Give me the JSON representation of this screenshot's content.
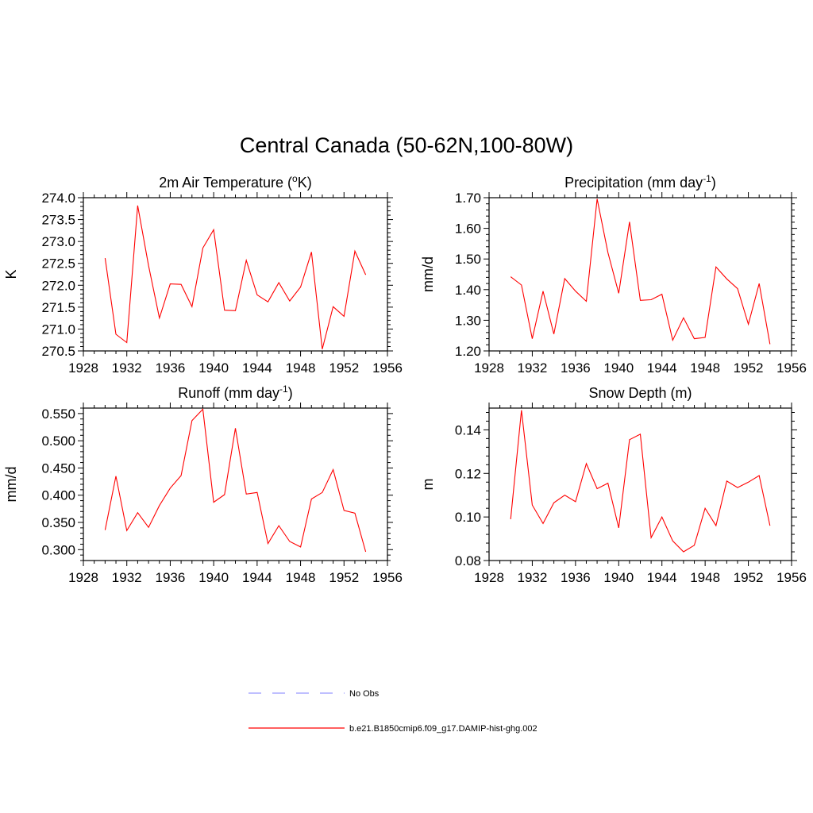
{
  "title": "Central Canada (50-62N,100-80W)",
  "legend": {
    "items": [
      {
        "label": "No Obs",
        "color": "#9999ff",
        "dash": true
      },
      {
        "label": "b.e21.B1850cmip6.f09_g17.DAMIP-hist-ghg.002",
        "color": "#ff0000",
        "dash": false
      }
    ]
  },
  "chart_data": [
    {
      "type": "line",
      "title": "2m Air Temperature (°K)",
      "title_parts": [
        "2m Air Temperature (",
        "o",
        "K)"
      ],
      "ylabel": "K",
      "xlim": [
        1928,
        1956
      ],
      "ylim": [
        270.5,
        274.0
      ],
      "xticks": [
        1928,
        1932,
        1936,
        1940,
        1944,
        1948,
        1952,
        1956
      ],
      "yticks": [
        "270.5",
        "271.0",
        "271.5",
        "272.0",
        "272.5",
        "273.0",
        "273.5",
        "274.0"
      ],
      "series": [
        {
          "color": "#ff0000",
          "x": [
            1930,
            1931,
            1932,
            1933,
            1934,
            1935,
            1936,
            1937,
            1938,
            1939,
            1940,
            1941,
            1942,
            1943,
            1944,
            1945,
            1946,
            1947,
            1948,
            1949,
            1950,
            1951,
            1952,
            1953,
            1954
          ],
          "y": [
            272.62,
            270.88,
            270.69,
            273.82,
            272.45,
            271.25,
            272.03,
            272.02,
            271.51,
            272.85,
            273.27,
            271.43,
            271.42,
            272.57,
            271.78,
            271.62,
            272.06,
            271.64,
            271.96,
            272.76,
            270.54,
            271.51,
            271.29,
            272.78,
            272.24
          ]
        }
      ]
    },
    {
      "type": "line",
      "title": "Precipitation (mm day-1)",
      "title_parts": [
        "Precipitation (mm day",
        "-1",
        ")"
      ],
      "ylabel": "mm/d",
      "xlim": [
        1928,
        1956
      ],
      "ylim": [
        1.2,
        1.7
      ],
      "xticks": [
        1928,
        1932,
        1936,
        1940,
        1944,
        1948,
        1952,
        1956
      ],
      "yticks": [
        "1.20",
        "1.30",
        "1.40",
        "1.50",
        "1.60",
        "1.70"
      ],
      "series": [
        {
          "color": "#ff0000",
          "x": [
            1930,
            1931,
            1932,
            1933,
            1934,
            1935,
            1936,
            1937,
            1938,
            1939,
            1940,
            1941,
            1942,
            1943,
            1944,
            1945,
            1946,
            1947,
            1948,
            1949,
            1950,
            1951,
            1952,
            1953,
            1954
          ],
          "y": [
            1.442,
            1.415,
            1.24,
            1.395,
            1.255,
            1.436,
            1.395,
            1.362,
            1.696,
            1.521,
            1.388,
            1.621,
            1.365,
            1.367,
            1.385,
            1.235,
            1.308,
            1.24,
            1.244,
            1.474,
            1.435,
            1.403,
            1.287,
            1.42,
            1.222
          ]
        }
      ]
    },
    {
      "type": "line",
      "title": "Runoff (mm day-1)",
      "title_parts": [
        "Runoff (mm day",
        "-1",
        ")"
      ],
      "ylabel": "mm/d",
      "xlim": [
        1928,
        1956
      ],
      "ylim": [
        0.28,
        0.56
      ],
      "xticks": [
        1928,
        1932,
        1936,
        1940,
        1944,
        1948,
        1952,
        1956
      ],
      "yticks": [
        "0.300",
        "0.350",
        "0.400",
        "0.450",
        "0.500",
        "0.550"
      ],
      "series": [
        {
          "color": "#ff0000",
          "x": [
            1930,
            1931,
            1932,
            1933,
            1934,
            1935,
            1936,
            1937,
            1938,
            1939,
            1940,
            1941,
            1942,
            1943,
            1944,
            1945,
            1946,
            1947,
            1948,
            1949,
            1950,
            1951,
            1952,
            1953,
            1954
          ],
          "y": [
            0.336,
            0.435,
            0.335,
            0.368,
            0.341,
            0.381,
            0.413,
            0.436,
            0.537,
            0.558,
            0.387,
            0.401,
            0.523,
            0.402,
            0.405,
            0.311,
            0.344,
            0.315,
            0.305,
            0.393,
            0.405,
            0.447,
            0.372,
            0.367,
            0.296
          ]
        }
      ]
    },
    {
      "type": "line",
      "title": "Snow Depth (m)",
      "title_parts": [
        "Snow Depth (m)",
        "",
        ""
      ],
      "ylabel": "m",
      "xlim": [
        1928,
        1956
      ],
      "ylim": [
        0.08,
        0.15
      ],
      "xticks": [
        1928,
        1932,
        1936,
        1940,
        1944,
        1948,
        1952,
        1956
      ],
      "yticks": [
        "0.08",
        "0.10",
        "0.12",
        "0.14"
      ],
      "series": [
        {
          "color": "#ff0000",
          "x": [
            1930,
            1931,
            1932,
            1933,
            1934,
            1935,
            1936,
            1937,
            1938,
            1939,
            1940,
            1941,
            1942,
            1943,
            1944,
            1945,
            1946,
            1947,
            1948,
            1949,
            1950,
            1951,
            1952,
            1953,
            1954
          ],
          "y": [
            0.099,
            0.149,
            0.1055,
            0.097,
            0.1065,
            0.11,
            0.107,
            0.1245,
            0.113,
            0.1155,
            0.095,
            0.1355,
            0.138,
            0.0905,
            0.1,
            0.089,
            0.084,
            0.087,
            0.104,
            0.096,
            0.1165,
            0.1135,
            0.116,
            0.119,
            0.096
          ]
        }
      ]
    }
  ]
}
